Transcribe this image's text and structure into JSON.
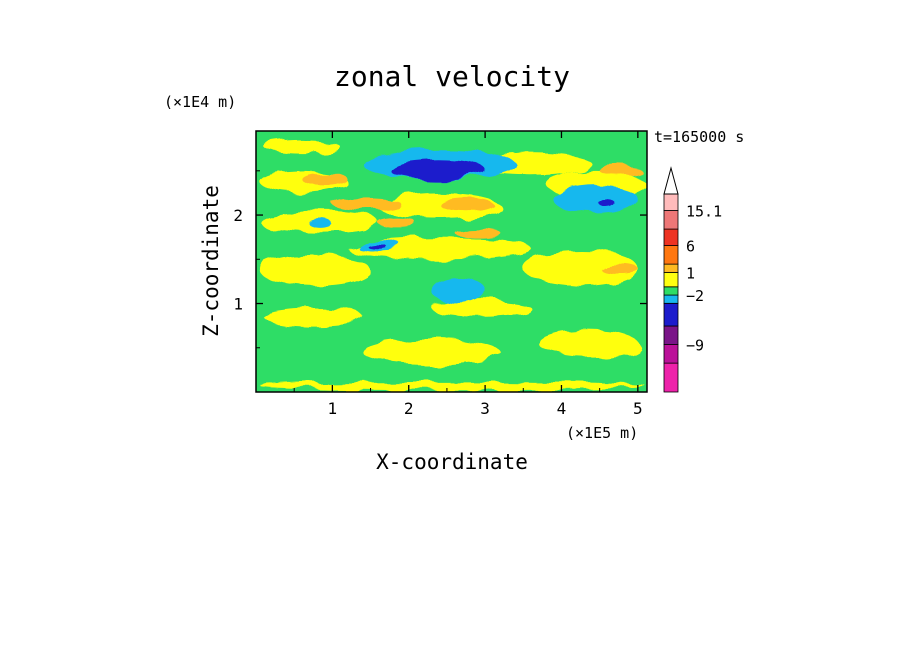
{
  "chart_data": {
    "type": "heatmap",
    "title": "zonal velocity",
    "xlabel": "X-coordinate",
    "ylabel": "Z-coordinate",
    "x_unit": "(×1E5 m)",
    "y_unit": "(×1E4 m)",
    "time_label": "t=165000 s",
    "xlim": [
      0,
      5.12
    ],
    "ylim": [
      0,
      2.95
    ],
    "x_ticks": [
      "1",
      "2",
      "3",
      "4",
      "5"
    ],
    "y_ticks": [
      "1",
      "2"
    ],
    "colorbar": {
      "labels": [
        "15.1",
        "6",
        "1",
        "−2",
        "−9"
      ],
      "levels": [
        {
          "color": "#ee22aa"
        },
        {
          "color": "#bb1199"
        },
        {
          "color": "#7a1488"
        },
        {
          "color": "#1c1ccc"
        },
        {
          "color": "#19b8ee"
        },
        {
          "color": "#2edd66"
        },
        {
          "color": "#ffff11"
        },
        {
          "color": "#ffbb22"
        },
        {
          "color": "#ff7711"
        },
        {
          "color": "#ee3322"
        },
        {
          "color": "#ee7777"
        },
        {
          "color": "#ffbbbb"
        }
      ]
    },
    "background_level_color": "#2edd66",
    "regions": [
      {
        "level": "yellow",
        "x": [
          0.05,
          5.1
        ],
        "z": [
          0.02,
          0.12
        ]
      },
      {
        "level": "yellow",
        "x": [
          0.1,
          1.4
        ],
        "z": [
          0.75,
          0.95
        ]
      },
      {
        "level": "yellow",
        "x": [
          1.4,
          3.2
        ],
        "z": [
          0.3,
          0.6
        ]
      },
      {
        "level": "yellow",
        "x": [
          3.7,
          5.0
        ],
        "z": [
          0.4,
          0.7
        ]
      },
      {
        "level": "yellow",
        "x": [
          2.3,
          3.6
        ],
        "z": [
          0.85,
          1.05
        ]
      },
      {
        "level": "yellow",
        "x": [
          0.05,
          1.5
        ],
        "z": [
          1.2,
          1.55
        ]
      },
      {
        "level": "yellow",
        "x": [
          1.2,
          3.6
        ],
        "z": [
          1.5,
          1.75
        ]
      },
      {
        "level": "yellow",
        "x": [
          3.5,
          5.0
        ],
        "z": [
          1.2,
          1.6
        ]
      },
      {
        "level": "yellow",
        "x": [
          0.05,
          1.6
        ],
        "z": [
          1.8,
          2.05
        ]
      },
      {
        "level": "yellow",
        "x": [
          0.05,
          1.2
        ],
        "z": [
          2.25,
          2.5
        ]
      },
      {
        "level": "yellow",
        "x": [
          1.6,
          3.2
        ],
        "z": [
          1.95,
          2.25
        ]
      },
      {
        "level": "yellow",
        "x": [
          2.8,
          4.4
        ],
        "z": [
          2.45,
          2.7
        ]
      },
      {
        "level": "yellow",
        "x": [
          3.8,
          5.1
        ],
        "z": [
          2.2,
          2.5
        ]
      },
      {
        "level": "yellow",
        "x": [
          0.1,
          1.1
        ],
        "z": [
          2.7,
          2.85
        ]
      },
      {
        "level": "orange-light",
        "x": [
          0.6,
          1.2
        ],
        "z": [
          2.33,
          2.48
        ]
      },
      {
        "level": "orange-light",
        "x": [
          1.0,
          1.9
        ],
        "z": [
          2.05,
          2.2
        ]
      },
      {
        "level": "orange-light",
        "x": [
          2.4,
          3.1
        ],
        "z": [
          2.05,
          2.2
        ]
      },
      {
        "level": "orange-light",
        "x": [
          4.5,
          5.05
        ],
        "z": [
          2.45,
          2.55
        ]
      },
      {
        "level": "orange-light",
        "x": [
          1.6,
          2.1
        ],
        "z": [
          1.86,
          1.96
        ]
      },
      {
        "level": "orange-light",
        "x": [
          2.6,
          3.2
        ],
        "z": [
          1.75,
          1.85
        ]
      },
      {
        "level": "orange-light",
        "x": [
          4.5,
          5.0
        ],
        "z": [
          1.35,
          1.45
        ]
      },
      {
        "level": "cyan",
        "x": [
          1.4,
          3.4
        ],
        "z": [
          2.4,
          2.75
        ]
      },
      {
        "level": "cyan",
        "x": [
          3.9,
          5.0
        ],
        "z": [
          2.0,
          2.35
        ]
      },
      {
        "level": "cyan",
        "x": [
          2.3,
          3.0
        ],
        "z": [
          1.0,
          1.3
        ]
      },
      {
        "level": "cyan",
        "x": [
          1.3,
          1.9
        ],
        "z": [
          1.6,
          1.72
        ]
      },
      {
        "level": "cyan",
        "x": [
          0.7,
          1.0
        ],
        "z": [
          1.85,
          1.95
        ]
      },
      {
        "level": "blue",
        "x": [
          1.75,
          3.0
        ],
        "z": [
          2.4,
          2.63
        ]
      },
      {
        "level": "blue",
        "x": [
          4.5,
          4.7
        ],
        "z": [
          2.08,
          2.18
        ]
      },
      {
        "level": "blue",
        "x": [
          1.45,
          1.7
        ],
        "z": [
          1.63,
          1.68
        ]
      }
    ]
  }
}
